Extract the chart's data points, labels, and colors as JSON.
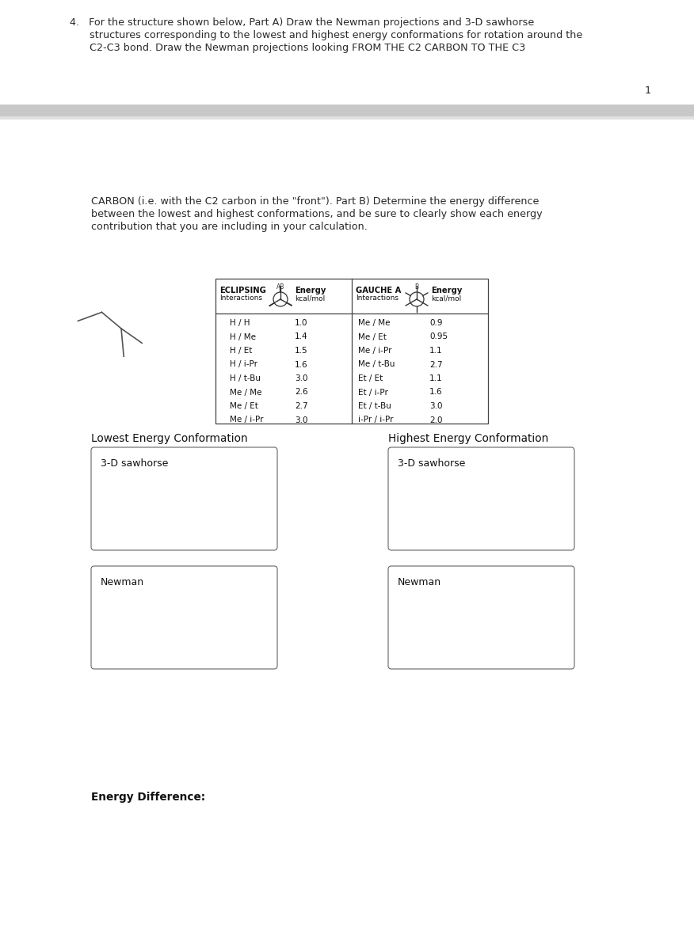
{
  "title_line1": "4.   For the structure shown below, Part A) Draw the Newman projections and 3-D sawhorse",
  "title_line2": "structures corresponding to the lowest and highest energy conformations for rotation around the",
  "title_line3": "C2-C3 bond. Draw the Newman projections looking FROM THE C2 CARBON TO THE C3",
  "page_number": "1",
  "continuation_line1": "CARBON (i.e. with the C2 carbon in the \"front\"). Part B) Determine the energy difference",
  "continuation_line2": "between the lowest and highest conformations, and be sure to clearly show each energy",
  "continuation_line3": "contribution that you are including in your calculation.",
  "eclipsing_header": "ECLIPSING",
  "eclipsing_sub": "Interactions",
  "gauche_header": "GAUCHE A",
  "gauche_sub": "Interactions",
  "energy_header": "Energy",
  "energy_sub": "kcal/mol",
  "ab_label": "AB",
  "b_label": "B",
  "eclipsing_data": [
    [
      "H / H",
      "1.0"
    ],
    [
      "H / Me",
      "1.4"
    ],
    [
      "H / Et",
      "1.5"
    ],
    [
      "H / i-Pr",
      "1.6"
    ],
    [
      "H / t-Bu",
      "3.0"
    ],
    [
      "Me / Me",
      "2.6"
    ],
    [
      "Me / Et",
      "2.7"
    ],
    [
      "Me / i-Pr",
      "3.0"
    ]
  ],
  "gauche_data": [
    [
      "Me / Me",
      "0.9"
    ],
    [
      "Me / Et",
      "0.95"
    ],
    [
      "Me / i-Pr",
      "1.1"
    ],
    [
      "Me / t-Bu",
      "2.7"
    ],
    [
      "Et / Et",
      "1.1"
    ],
    [
      "Et / i-Pr",
      "1.6"
    ],
    [
      "Et / t-Bu",
      "3.0"
    ],
    [
      "i-Pr / i-Pr",
      "2.0"
    ]
  ],
  "lowest_label": "Lowest Energy Conformation",
  "highest_label": "Highest Energy Conformation",
  "sawhorse_label": "3-D sawhorse",
  "newman_label": "Newman",
  "energy_diff_label": "Energy Difference:",
  "bg_color": "#ffffff",
  "separator_color": "#c8c8c8",
  "separator2_color": "#d8d8d8"
}
